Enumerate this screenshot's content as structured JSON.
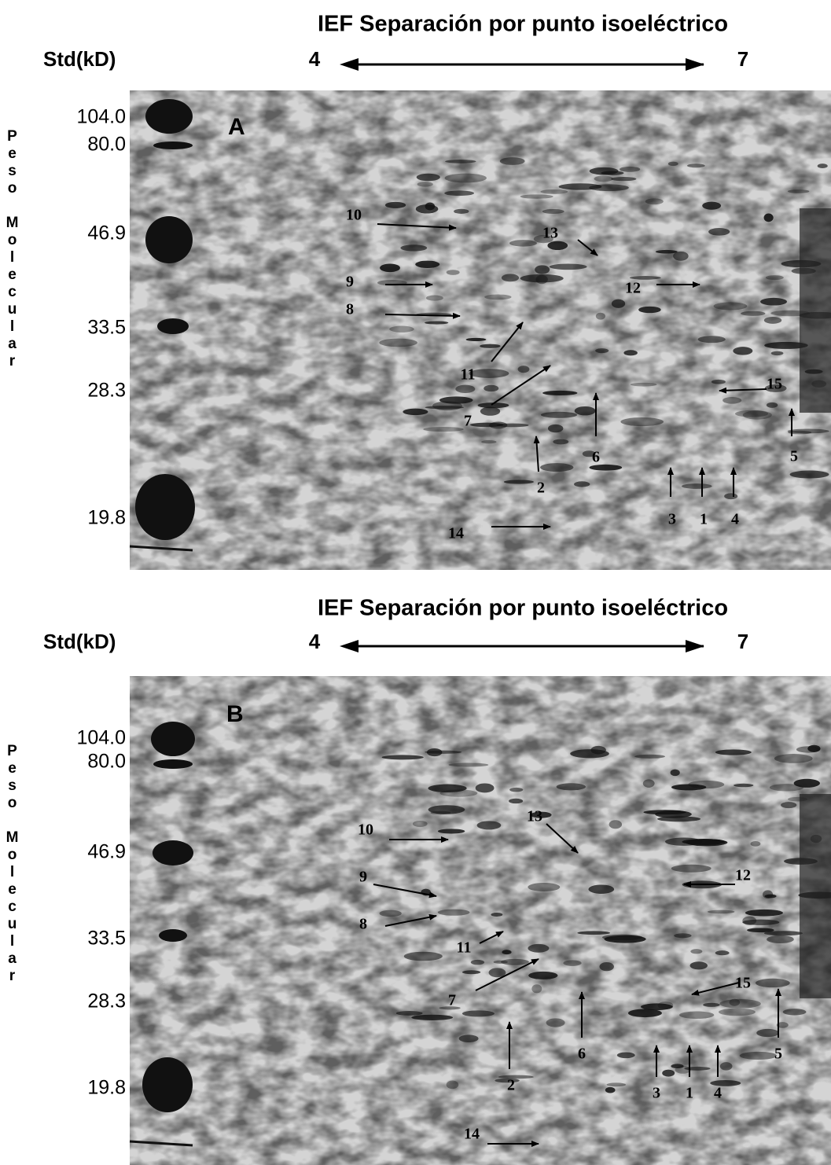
{
  "panels": [
    {
      "label": "A",
      "title": "IEF Separación por punto isoeléctrico",
      "std_label": "Std(kD)",
      "ph_low": "4",
      "ph_high": "7",
      "axis_label": "Peso Molecular",
      "markers": [
        "104.0",
        "80.0",
        "46.9",
        "33.5",
        "28.3",
        "19.8"
      ],
      "spots": [
        "10",
        "13",
        "9",
        "12",
        "8",
        "11",
        "15",
        "7",
        "6",
        "2",
        "5",
        "3",
        "1",
        "4",
        "14"
      ]
    },
    {
      "label": "B",
      "title": "IEF Separación por punto isoeléctrico",
      "std_label": "Std(kD)",
      "ph_low": "4",
      "ph_high": "7",
      "axis_label": "Peso Molecular",
      "markers": [
        "104.0",
        "80.0",
        "46.9",
        "33.5",
        "28.3",
        "19.8"
      ],
      "spots": [
        "10",
        "13",
        "9",
        "12",
        "8",
        "11",
        "15",
        "7",
        "6",
        "2",
        "5",
        "3",
        "1",
        "4",
        "14"
      ]
    }
  ]
}
